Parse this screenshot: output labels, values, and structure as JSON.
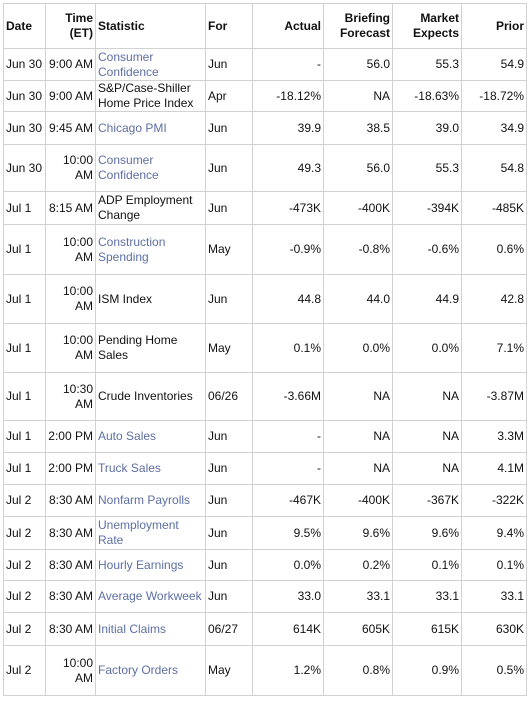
{
  "headers": {
    "date": "Date",
    "time_line1": "Time",
    "time_line2": "(ET)",
    "statistic": "Statistic",
    "for": "For",
    "actual": "Actual",
    "briefing_line1": "Briefing",
    "briefing_line2": "Forecast",
    "market_line1": "Market",
    "market_line2": "Expects",
    "prior": "Prior"
  },
  "rows": [
    {
      "date": "Jun 30",
      "time": "9:00 AM",
      "statistic": "Consumer Confidence",
      "link": true,
      "for": "Jun",
      "actual": "-",
      "briefing": "56.0",
      "market": "55.3",
      "prior": "54.9"
    },
    {
      "date": "Jun 30",
      "time": "9:00 AM",
      "statistic": "S&P/Case-Shiller Home Price Index",
      "link": false,
      "for": "Apr",
      "actual": "-18.12%",
      "briefing": "NA",
      "market": "-18.63%",
      "prior": "-18.72%"
    },
    {
      "date": "Jun 30",
      "time": "9:45 AM",
      "statistic": "Chicago PMI",
      "link": true,
      "for": "Jun",
      "actual": "39.9",
      "briefing": "38.5",
      "market": "39.0",
      "prior": "34.9"
    },
    {
      "date": "Jun 30",
      "time": "10:00 AM",
      "statistic": "Consumer Confidence",
      "link": true,
      "for": "Jun",
      "actual": "49.3",
      "briefing": "56.0",
      "market": "55.3",
      "prior": "54.8"
    },
    {
      "date": "Jul 1",
      "time": "8:15 AM",
      "statistic": "ADP Employment Change",
      "link": false,
      "for": "Jun",
      "actual": "-473K",
      "briefing": "-400K",
      "market": "-394K",
      "prior": "-485K"
    },
    {
      "date": "Jul 1",
      "time": "10:00 AM",
      "statistic": "Construction Spending",
      "link": true,
      "for": "May",
      "actual": "-0.9%",
      "briefing": "-0.8%",
      "market": "-0.6%",
      "prior": "0.6%"
    },
    {
      "date": "Jul 1",
      "time": "10:00 AM",
      "statistic": "ISM Index",
      "link": false,
      "for": "Jun",
      "actual": "44.8",
      "briefing": "44.0",
      "market": "44.9",
      "prior": "42.8"
    },
    {
      "date": "Jul 1",
      "time": "10:00 AM",
      "statistic": "Pending Home Sales",
      "link": false,
      "for": "May",
      "actual": "0.1%",
      "briefing": "0.0%",
      "market": "0.0%",
      "prior": "7.1%"
    },
    {
      "date": "Jul 1",
      "time": "10:30 AM",
      "statistic": "Crude Inventories",
      "link": false,
      "for": "06/26",
      "actual": "-3.66M",
      "briefing": "NA",
      "market": "NA",
      "prior": "-3.87M"
    },
    {
      "date": "Jul 1",
      "time": "2:00 PM",
      "statistic": "Auto Sales",
      "link": true,
      "for": "Jun",
      "actual": "-",
      "briefing": "NA",
      "market": "NA",
      "prior": "3.3M"
    },
    {
      "date": "Jul 1",
      "time": "2:00 PM",
      "statistic": "Truck Sales",
      "link": true,
      "for": "Jun",
      "actual": "-",
      "briefing": "NA",
      "market": "NA",
      "prior": "4.1M"
    },
    {
      "date": "Jul 2",
      "time": "8:30 AM",
      "statistic": "Nonfarm Payrolls",
      "link": true,
      "for": "Jun",
      "actual": "-467K",
      "briefing": "-400K",
      "market": "-367K",
      "prior": "-322K"
    },
    {
      "date": "Jul 2",
      "time": "8:30 AM",
      "statistic": "Unemployment Rate",
      "link": true,
      "for": "Jun",
      "actual": "9.5%",
      "briefing": "9.6%",
      "market": "9.6%",
      "prior": "9.4%"
    },
    {
      "date": "Jul 2",
      "time": "8:30 AM",
      "statistic": "Hourly Earnings",
      "link": true,
      "for": "Jun",
      "actual": "0.0%",
      "briefing": "0.2%",
      "market": "0.1%",
      "prior": "0.1%"
    },
    {
      "date": "Jul 2",
      "time": "8:30 AM",
      "statistic": "Average Workweek",
      "link": true,
      "for": "Jun",
      "actual": "33.0",
      "briefing": "33.1",
      "market": "33.1",
      "prior": "33.1"
    },
    {
      "date": "Jul 2",
      "time": "8:30 AM",
      "statistic": "Initial Claims",
      "link": true,
      "for": "06/27",
      "actual": "614K",
      "briefing": "605K",
      "market": "615K",
      "prior": "630K"
    },
    {
      "date": "Jul 2",
      "time": "10:00 AM",
      "statistic": "Factory Orders",
      "link": true,
      "for": "May",
      "actual": "1.2%",
      "briefing": "0.8%",
      "market": "0.9%",
      "prior": "0.5%"
    }
  ],
  "footer": "",
  "colors": {
    "link": "#5e6fa3",
    "border": "#d2d2d2",
    "text": "#111111"
  }
}
